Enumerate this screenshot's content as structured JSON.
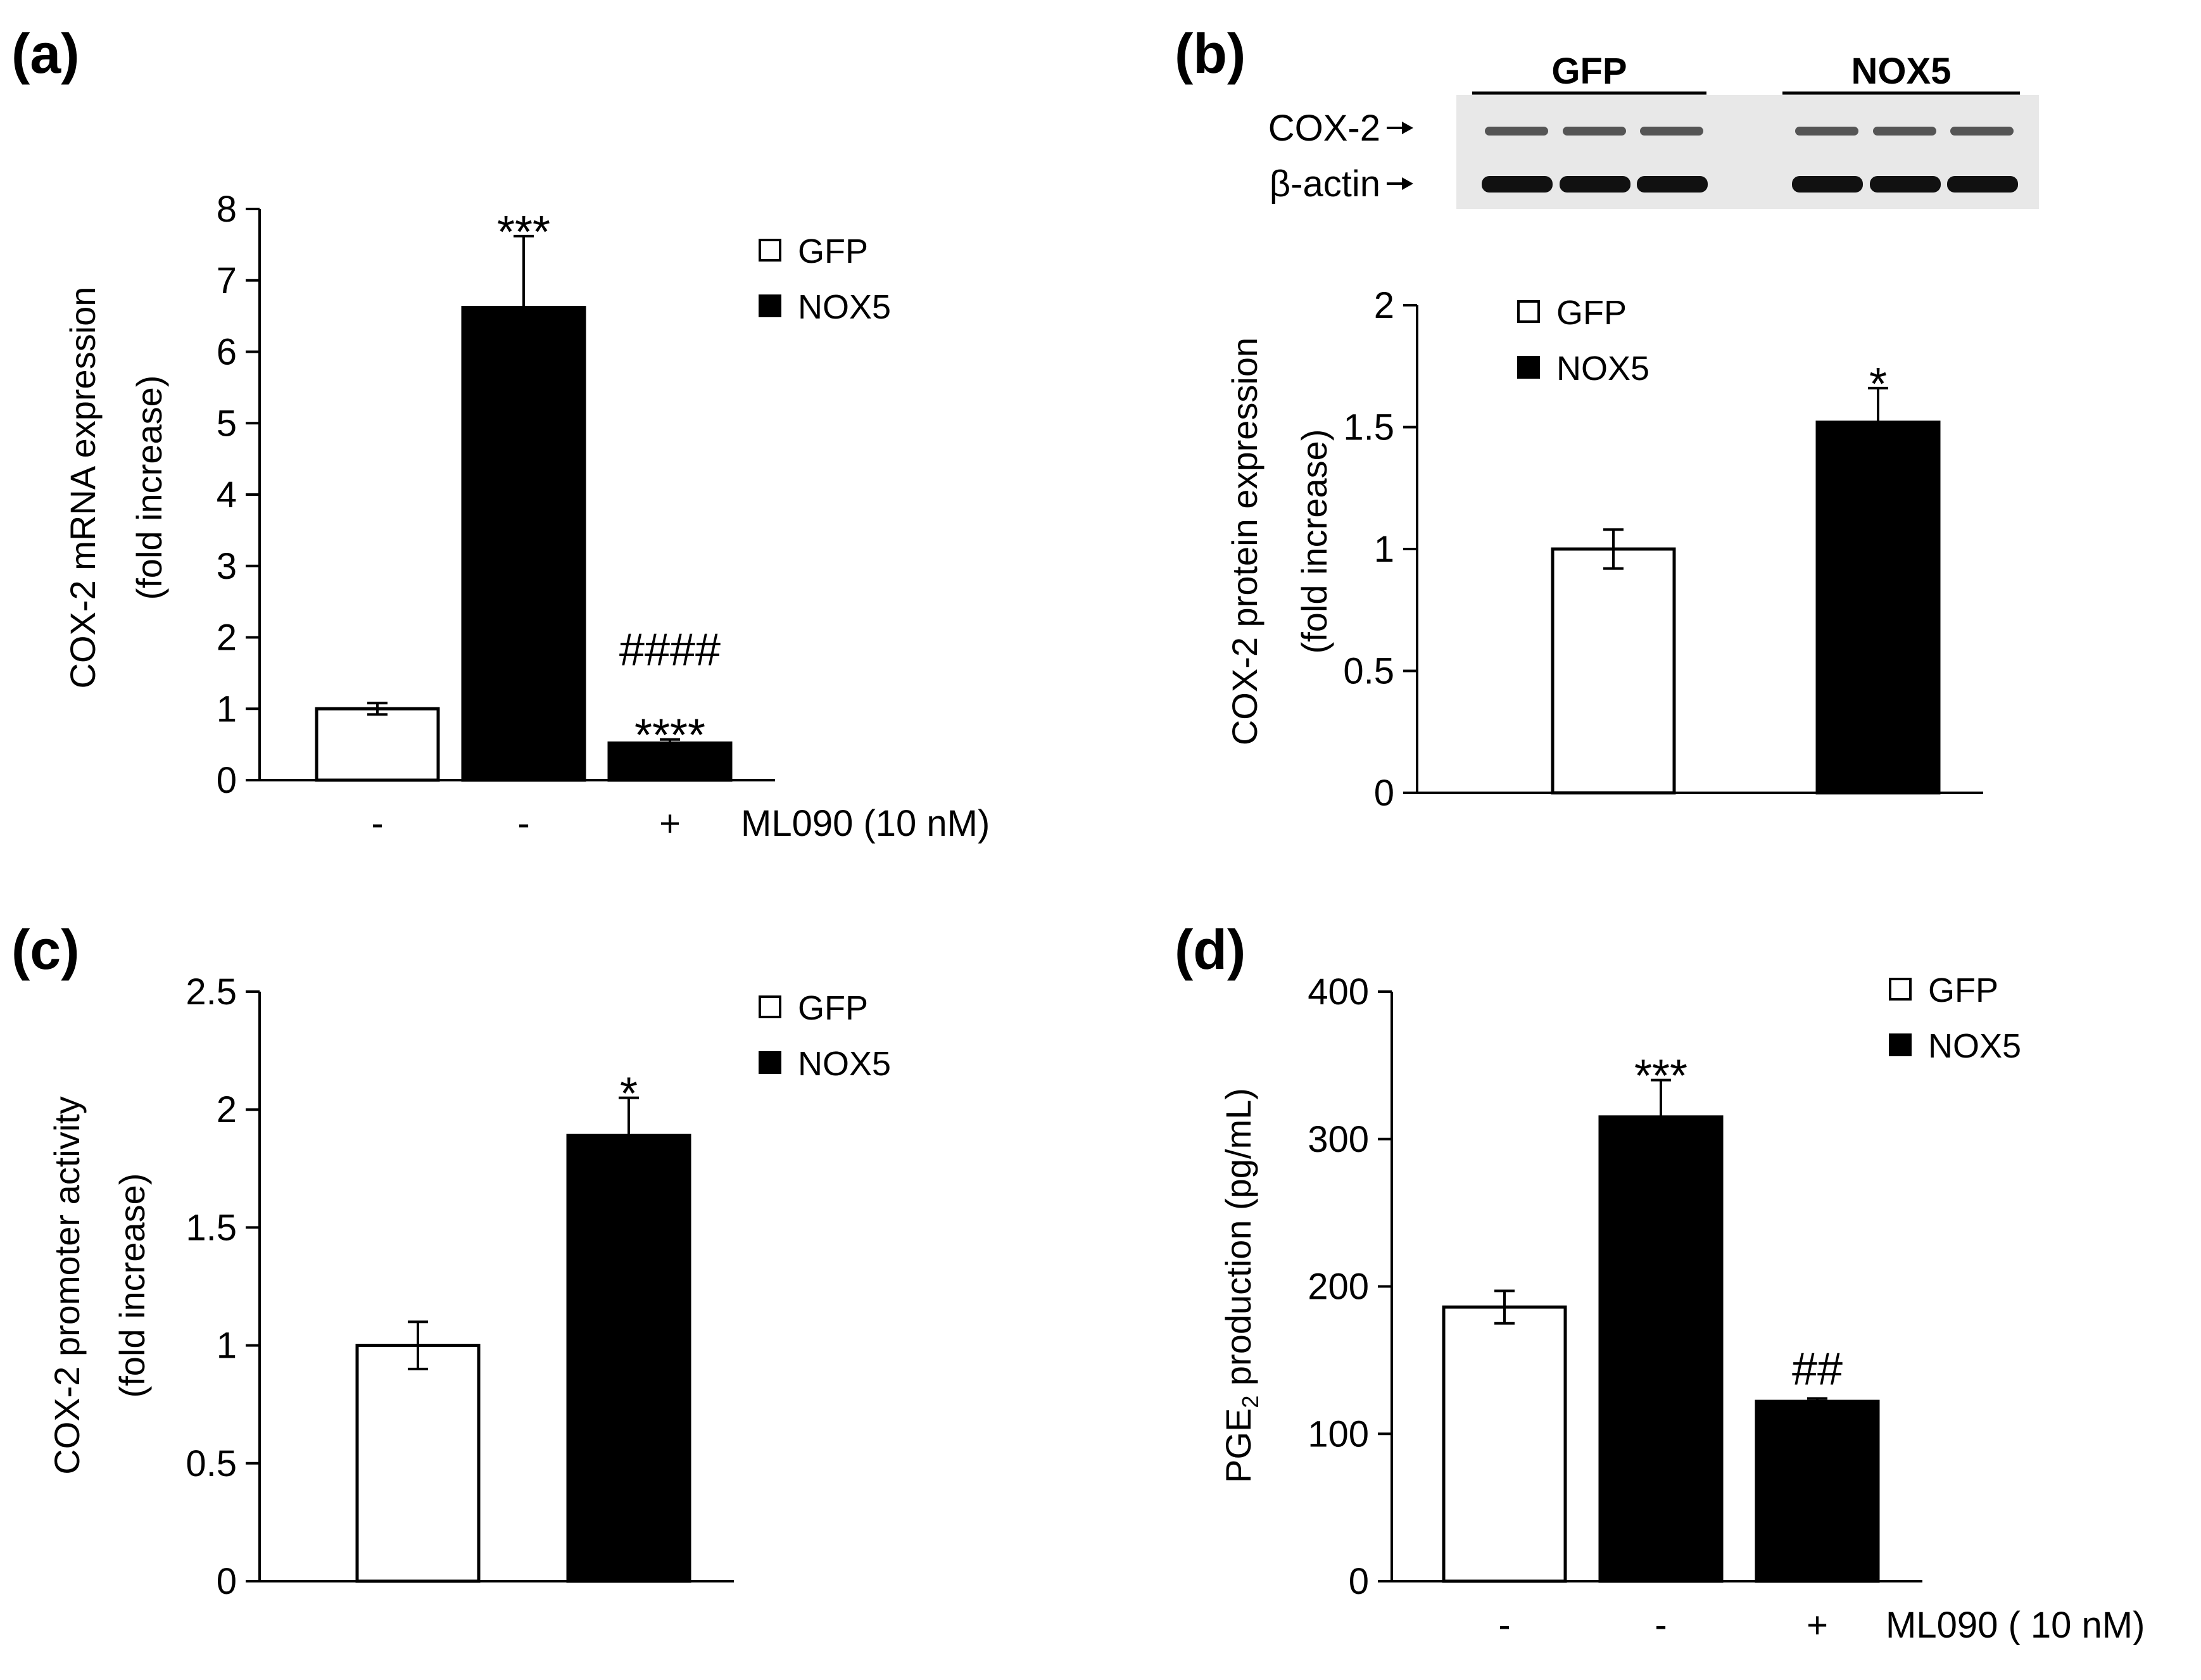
{
  "chart_data": [
    {
      "panel": "(a)",
      "type": "bar",
      "categories": [
        "-",
        "-",
        "+"
      ],
      "series": [
        {
          "name": "COX-2 mRNA",
          "values": [
            1.0,
            6.62,
            0.52
          ],
          "errors": [
            0.08,
            1.0,
            0.05
          ],
          "fills": [
            "GFP",
            "NOX5",
            "NOX5"
          ]
        }
      ],
      "ylabel_line1": "COX-2 mRNA expression",
      "ylabel_line2": "(fold increase)",
      "ylim": [
        0,
        8
      ],
      "yticks": [
        0,
        1,
        2,
        3,
        4,
        5,
        6,
        7,
        8
      ],
      "ytick_labels": [
        "0",
        "1",
        "2",
        "3",
        "4",
        "5",
        "6",
        "7",
        "8"
      ],
      "treatment_label": "ML090 (10 nM)",
      "annotations": [
        {
          "bar": 1,
          "lines": [
            "***"
          ]
        },
        {
          "bar": 2,
          "lines": [
            "####",
            "****"
          ]
        }
      ],
      "legend": [
        "GFP",
        "NOX5"
      ],
      "legend_position": "top-right"
    },
    {
      "panel": "(b)",
      "type": "bar",
      "categories": [
        "",
        ""
      ],
      "series": [
        {
          "name": "COX-2 protein",
          "values": [
            1.0,
            1.52
          ],
          "errors": [
            0.08,
            0.14
          ],
          "fills": [
            "GFP",
            "NOX5"
          ]
        }
      ],
      "ylabel_line1": "COX-2 protein expression",
      "ylabel_line2": "(fold increase)",
      "ylim": [
        0,
        2
      ],
      "yticks": [
        0,
        0.5,
        1,
        1.5,
        2
      ],
      "ytick_labels": [
        "0",
        "0.5",
        "1",
        "1.5",
        "2"
      ],
      "treatment_label": "",
      "annotations": [
        {
          "bar": 1,
          "lines": [
            "*"
          ]
        }
      ],
      "legend": [
        "GFP",
        "NOX5"
      ],
      "legend_position": "top-left",
      "blot": {
        "groups": [
          "GFP",
          "NOX5"
        ],
        "rows": [
          "COX-2",
          "β-actin"
        ]
      }
    },
    {
      "panel": "(c)",
      "type": "bar",
      "categories": [
        "",
        ""
      ],
      "series": [
        {
          "name": "COX-2 promoter activity",
          "values": [
            1.0,
            1.89
          ],
          "errors": [
            0.1,
            0.16
          ],
          "fills": [
            "GFP",
            "NOX5"
          ]
        }
      ],
      "ylabel_line1": "COX-2 promoter activity",
      "ylabel_line2": "(fold increase)",
      "ylim": [
        0,
        2.5
      ],
      "yticks": [
        0,
        0.5,
        1,
        1.5,
        2,
        2.5
      ],
      "ytick_labels": [
        "0",
        "0.5",
        "1",
        "1.5",
        "2",
        "2.5"
      ],
      "treatment_label": "",
      "annotations": [
        {
          "bar": 1,
          "lines": [
            "*"
          ]
        }
      ],
      "legend": [
        "GFP",
        "NOX5"
      ],
      "legend_position": "top-right"
    },
    {
      "panel": "(d)",
      "type": "bar",
      "categories": [
        "-",
        "-",
        "+"
      ],
      "series": [
        {
          "name": "PGE2 production",
          "values": [
            186,
            315,
            122
          ],
          "errors": [
            11,
            25,
            2
          ],
          "fills": [
            "GFP",
            "NOX5",
            "NOX5"
          ]
        }
      ],
      "ylabel_line1": "PGE2 production (pg/mL)",
      "ylabel_line2": "",
      "ylim": [
        0,
        400
      ],
      "yticks": [
        0,
        100,
        200,
        300,
        400
      ],
      "ytick_labels": [
        "0",
        "100",
        "200",
        "300",
        "400"
      ],
      "treatment_label": "ML090 ( 10 nM)",
      "annotations": [
        {
          "bar": 1,
          "lines": [
            "***"
          ]
        },
        {
          "bar": 2,
          "lines": [
            "##"
          ]
        }
      ],
      "legend": [
        "GFP",
        "NOX5"
      ],
      "legend_position": "top-right"
    }
  ]
}
